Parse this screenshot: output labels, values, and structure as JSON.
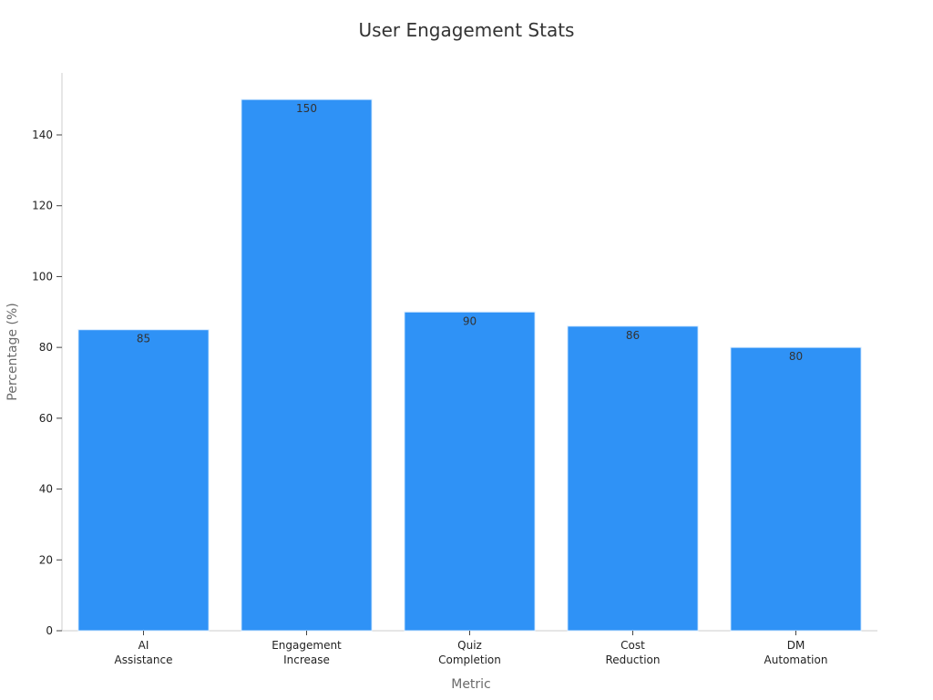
{
  "chart_data": {
    "type": "bar",
    "title": "User Engagement Stats",
    "xlabel": "Metric",
    "ylabel": "Percentage (%)",
    "categories": [
      [
        "AI",
        "Assistance"
      ],
      [
        "Engagement",
        "Increase"
      ],
      [
        "Quiz",
        "Completion"
      ],
      [
        "Cost",
        "Reduction"
      ],
      [
        "DM",
        "Automation"
      ]
    ],
    "values": [
      85,
      150,
      90,
      86,
      80
    ],
    "data_labels": [
      "85",
      "150",
      "90",
      "86",
      "80"
    ],
    "yticks": [
      0,
      20,
      40,
      60,
      80,
      100,
      120,
      140
    ],
    "ylim": [
      0,
      157.5
    ],
    "grid": false,
    "legend": "none",
    "bar_color": "#2f92f6",
    "bar_edge_color": "#d9ecff"
  }
}
